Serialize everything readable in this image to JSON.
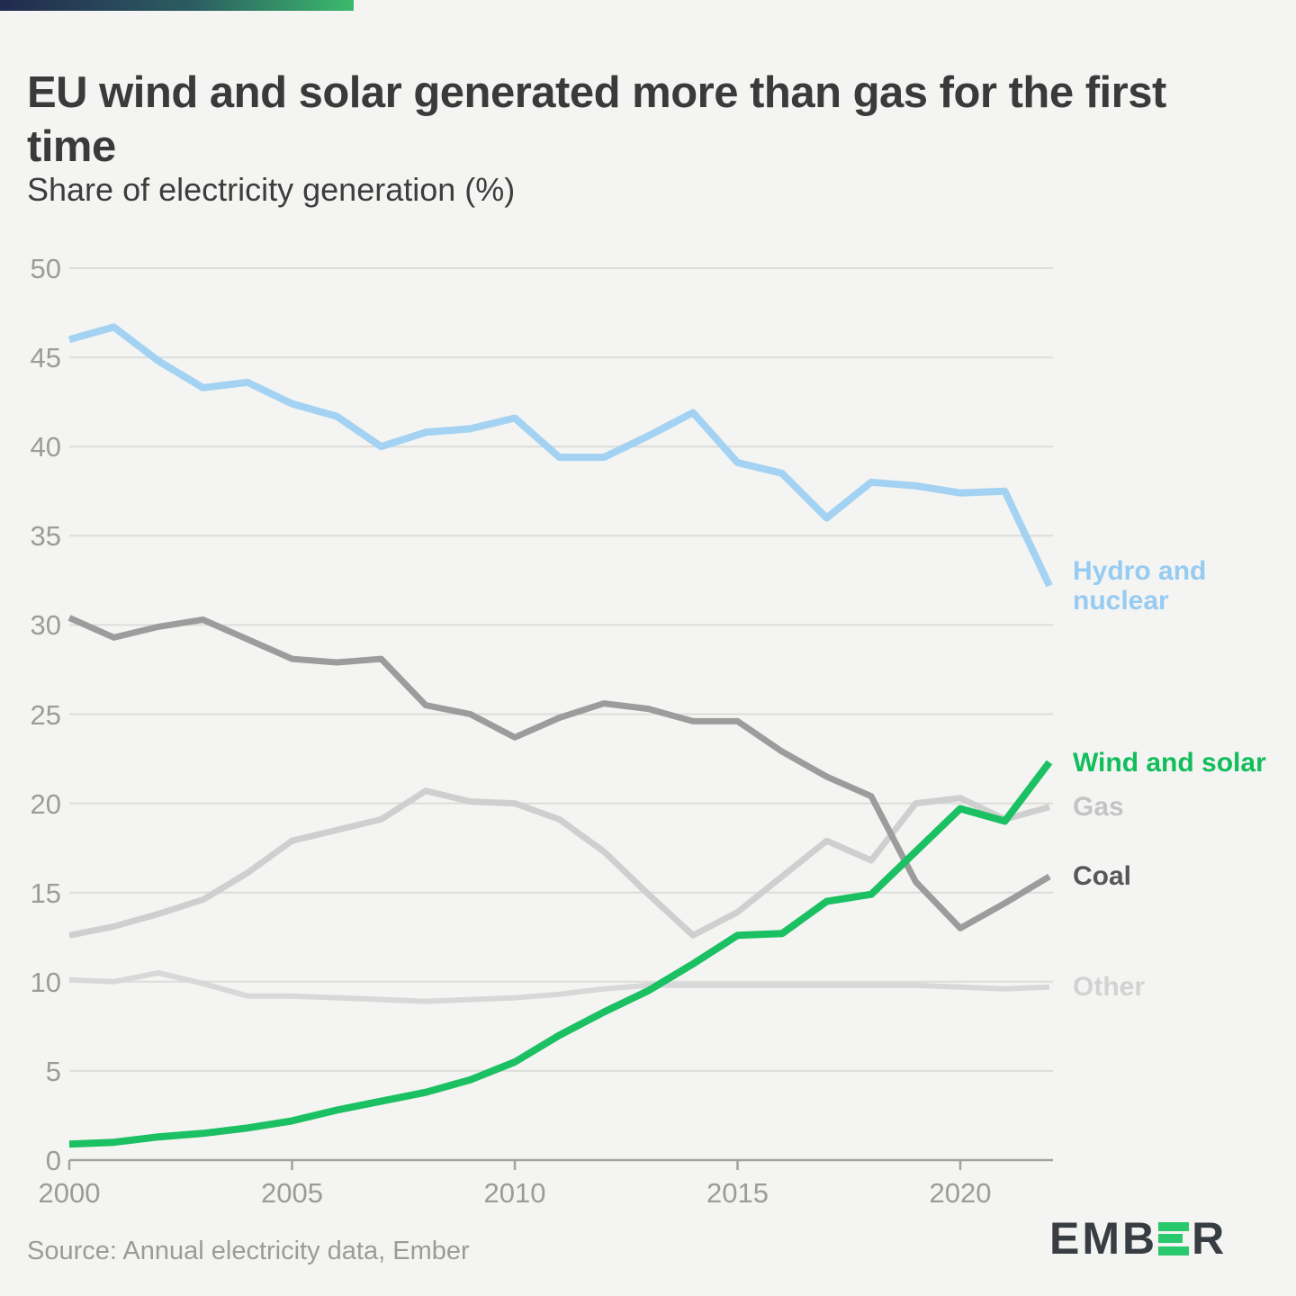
{
  "header": {
    "title": "EU wind and solar generated more than gas for the first time",
    "subtitle": "Share of electricity generation (%)"
  },
  "footer": {
    "source": "Source: Annual electricity data, Ember",
    "logo_part1": "EMB",
    "logo_part2": "R",
    "logo_text": "EMBER"
  },
  "colors": {
    "background": "#f4f4f2",
    "title_text": "#3a3a3a",
    "axis_text": "#9b9b99",
    "gridline": "#dcdcda",
    "axis_line": "#a2a2a0",
    "accent_bar_start": "#222a4e",
    "accent_bar_end": "#3cba6d",
    "logo_dark": "#383d44",
    "logo_green": "#29c86c"
  },
  "chart_data": {
    "type": "line",
    "title": "EU wind and solar generated more than gas for the first time",
    "subtitle": "Share of electricity generation (%)",
    "xlabel": "",
    "ylabel": "Share of electricity generation (%)",
    "xlim": [
      2000,
      2022
    ],
    "ylim": [
      0,
      50
    ],
    "grid": true,
    "legend_position": "right-end-of-line",
    "x": [
      2000,
      2001,
      2002,
      2003,
      2004,
      2005,
      2006,
      2007,
      2008,
      2009,
      2010,
      2011,
      2012,
      2013,
      2014,
      2015,
      2016,
      2017,
      2018,
      2019,
      2020,
      2021,
      2022
    ],
    "x_ticks": [
      2000,
      2005,
      2010,
      2015,
      2020
    ],
    "y_ticks": [
      0,
      5,
      10,
      15,
      20,
      25,
      30,
      35,
      40,
      45,
      50
    ],
    "series": [
      {
        "name": "Other",
        "label_lines": [
          "Other"
        ],
        "color": "#d8d8d8",
        "label_color": "#d2d2d2",
        "line_width": 6,
        "values": [
          10.1,
          10.0,
          10.5,
          9.9,
          9.2,
          9.2,
          9.1,
          9.0,
          8.9,
          9.0,
          9.1,
          9.3,
          9.6,
          9.8,
          9.8,
          9.8,
          9.8,
          9.8,
          9.8,
          9.8,
          9.7,
          9.6,
          9.7
        ]
      },
      {
        "name": "Gas",
        "label_lines": [
          "Gas"
        ],
        "color": "#cfcfcf",
        "label_color": "#c4c4c4",
        "line_width": 7,
        "values": [
          12.6,
          13.1,
          13.8,
          14.6,
          16.1,
          17.9,
          18.5,
          19.1,
          20.7,
          20.1,
          20.0,
          19.1,
          17.3,
          14.9,
          12.6,
          13.9,
          15.9,
          17.9,
          16.8,
          20.0,
          20.3,
          19.1,
          19.8
        ]
      },
      {
        "name": "Coal",
        "label_lines": [
          "Coal"
        ],
        "color": "#9c9c9c",
        "label_color": "#56575b",
        "line_width": 7,
        "values": [
          30.4,
          29.3,
          29.9,
          30.3,
          29.2,
          28.1,
          27.9,
          28.1,
          25.5,
          25.0,
          23.7,
          24.8,
          25.6,
          25.3,
          24.6,
          24.6,
          22.9,
          21.5,
          20.4,
          15.6,
          13.0,
          14.4,
          15.9
        ]
      },
      {
        "name": "Hydro and nuclear",
        "label_lines": [
          "Hydro and",
          "nuclear"
        ],
        "color": "#a3d2f2",
        "label_color": "#96ccf2",
        "line_width": 8,
        "values": [
          46.0,
          46.7,
          44.8,
          43.3,
          43.6,
          42.4,
          41.7,
          40.0,
          40.8,
          41.0,
          41.6,
          39.4,
          39.4,
          40.6,
          41.9,
          39.1,
          38.5,
          36.0,
          38.0,
          37.8,
          37.4,
          37.5,
          32.2
        ]
      },
      {
        "name": "Wind and solar",
        "label_lines": [
          "Wind and solar"
        ],
        "color": "#1ac061",
        "label_color": "#12bd5b",
        "line_width": 8,
        "values": [
          0.9,
          1.0,
          1.3,
          1.5,
          1.8,
          2.2,
          2.8,
          3.3,
          3.8,
          4.5,
          5.5,
          7.0,
          8.3,
          9.5,
          11.0,
          12.6,
          12.7,
          14.5,
          14.9,
          17.3,
          19.7,
          19.0,
          22.3
        ]
      }
    ]
  }
}
